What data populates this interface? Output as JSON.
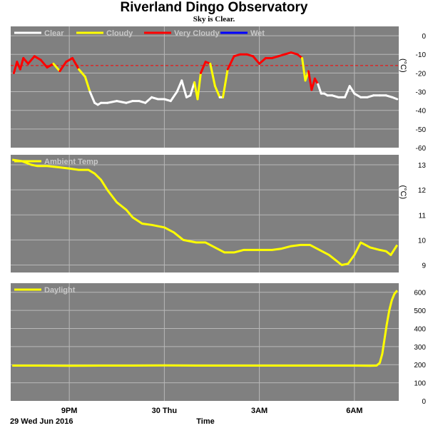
{
  "header": {
    "title": "Riverland Dingo Observatory",
    "subtitle": "Sky is Clear."
  },
  "colors": {
    "panel_bg": "#808080",
    "grid": "#b8b8b8",
    "clear": "#ffffff",
    "cloudy": "#ffff00",
    "very_cloudy": "#ff0000",
    "wet": "#0000ff",
    "threshold": "#ff0000",
    "legend_text": "#c8c8c8"
  },
  "x_axis": {
    "label": "Time",
    "date_label": "29 Wed Jun 2016",
    "ticks": [
      {
        "hour": 21,
        "label": "9PM"
      },
      {
        "hour": 24,
        "label": "30 Thu"
      },
      {
        "hour": 27,
        "label": "3AM"
      },
      {
        "hour": 30,
        "label": "6AM"
      }
    ],
    "xlim": [
      19.15,
      31.4
    ]
  },
  "chart_data": [
    {
      "type": "line",
      "panel": "sky",
      "legend": [
        "Clear",
        "Cloudy",
        "Very Cloudy",
        "Wet"
      ],
      "ylabel": "(°C)",
      "ylim": [
        -60,
        5
      ],
      "yticks": [
        0,
        -10,
        -20,
        -30,
        -40,
        -50,
        -60
      ],
      "threshold": -16,
      "x": [
        19.25,
        19.35,
        19.45,
        19.55,
        19.7,
        19.9,
        20.1,
        20.3,
        20.5,
        20.7,
        20.9,
        21.1,
        21.3,
        21.5,
        21.65,
        21.8,
        21.9,
        22.0,
        22.2,
        22.5,
        22.8,
        23.0,
        23.2,
        23.4,
        23.6,
        23.8,
        24.0,
        24.2,
        24.4,
        24.55,
        24.7,
        24.82,
        24.95,
        25.05,
        25.15,
        25.3,
        25.45,
        25.6,
        25.75,
        25.85,
        26.0,
        26.2,
        26.4,
        26.6,
        26.8,
        27.0,
        27.2,
        27.4,
        27.6,
        27.8,
        28.0,
        28.2,
        28.35,
        28.45,
        28.55,
        28.65,
        28.75,
        28.85,
        28.95,
        29.05,
        29.15,
        29.3,
        29.5,
        29.7,
        29.85,
        30.0,
        30.2,
        30.4,
        30.6,
        30.8,
        31.0,
        31.2,
        31.35
      ],
      "y": [
        -20,
        -14,
        -18,
        -12,
        -15,
        -11,
        -13,
        -17,
        -15,
        -19,
        -14,
        -12,
        -18,
        -22,
        -30,
        -36,
        -37,
        -36,
        -36,
        -35,
        -36,
        -35,
        -35,
        -36,
        -33,
        -34,
        -34,
        -35,
        -30,
        -24,
        -33,
        -32,
        -25,
        -34,
        -20,
        -14,
        -15,
        -27,
        -33,
        -33,
        -18,
        -11,
        -10,
        -10,
        -11,
        -15,
        -12,
        -12,
        -11,
        -10,
        -9,
        -10,
        -12,
        -24,
        -19,
        -29,
        -23,
        -26,
        -31,
        -31,
        -32,
        -32,
        -33,
        -33,
        -27,
        -31,
        -33,
        -33,
        -32,
        -32,
        -32,
        -33,
        -34
      ],
      "condition": [
        "cloudy",
        "very_cloudy",
        "very_cloudy",
        "very_cloudy",
        "very_cloudy",
        "very_cloudy",
        "very_cloudy",
        "very_cloudy",
        "very_cloudy",
        "cloudy",
        "very_cloudy",
        "very_cloudy",
        "very_cloudy",
        "cloudy",
        "cloudy",
        "clear",
        "clear",
        "clear",
        "clear",
        "clear",
        "clear",
        "clear",
        "clear",
        "clear",
        "clear",
        "clear",
        "clear",
        "clear",
        "clear",
        "clear",
        "clear",
        "clear",
        "clear",
        "cloudy",
        "cloudy",
        "very_cloudy",
        "very_cloudy",
        "cloudy",
        "cloudy",
        "clear",
        "cloudy",
        "very_cloudy",
        "very_cloudy",
        "very_cloudy",
        "very_cloudy",
        "very_cloudy",
        "very_cloudy",
        "very_cloudy",
        "very_cloudy",
        "very_cloudy",
        "very_cloudy",
        "very_cloudy",
        "very_cloudy",
        "cloudy",
        "cloudy",
        "very_cloudy",
        "very_cloudy",
        "very_cloudy",
        "clear",
        "clear",
        "clear",
        "clear",
        "clear",
        "clear",
        "clear",
        "clear",
        "clear",
        "clear",
        "clear",
        "clear",
        "clear",
        "clear",
        "clear"
      ]
    },
    {
      "type": "line",
      "panel": "temperature",
      "legend": [
        "Ambient Temp"
      ],
      "ylabel": "(°C)",
      "ylim": [
        8.7,
        13.4
      ],
      "yticks": [
        9,
        10,
        11,
        12,
        13
      ],
      "x": [
        19.2,
        19.5,
        19.8,
        20.0,
        20.3,
        20.7,
        21.0,
        21.3,
        21.6,
        21.8,
        22.0,
        22.2,
        22.5,
        22.8,
        23.0,
        23.3,
        23.6,
        24.0,
        24.3,
        24.6,
        24.8,
        25.0,
        25.3,
        25.6,
        25.9,
        26.2,
        26.5,
        26.8,
        27.1,
        27.4,
        27.7,
        28.0,
        28.3,
        28.6,
        28.9,
        29.2,
        29.4,
        29.6,
        29.8,
        30.0,
        30.2,
        30.5,
        30.8,
        31.0,
        31.15,
        31.35
      ],
      "y": [
        13.2,
        13.15,
        13.0,
        12.95,
        12.95,
        12.9,
        12.85,
        12.8,
        12.8,
        12.65,
        12.4,
        12.0,
        11.5,
        11.2,
        10.9,
        10.65,
        10.6,
        10.5,
        10.3,
        10.0,
        9.95,
        9.9,
        9.9,
        9.7,
        9.5,
        9.5,
        9.6,
        9.6,
        9.6,
        9.6,
        9.65,
        9.75,
        9.8,
        9.8,
        9.6,
        9.4,
        9.2,
        9.0,
        9.05,
        9.4,
        9.9,
        9.7,
        9.6,
        9.55,
        9.4,
        9.8
      ]
    },
    {
      "type": "line",
      "panel": "daylight",
      "legend": [
        "Daylight"
      ],
      "ylim": [
        0,
        650
      ],
      "yticks": [
        0,
        100,
        200,
        300,
        400,
        500,
        600
      ],
      "x": [
        19.2,
        20.0,
        21.0,
        22.0,
        23.0,
        24.0,
        25.0,
        26.0,
        27.0,
        28.0,
        29.0,
        30.0,
        30.5,
        30.7,
        30.8,
        30.88,
        30.95,
        31.02,
        31.1,
        31.18,
        31.26,
        31.35
      ],
      "y": [
        195,
        195,
        194,
        195,
        195,
        196,
        195,
        195,
        195,
        195,
        195,
        195,
        194,
        195,
        210,
        260,
        340,
        420,
        500,
        555,
        590,
        610
      ]
    }
  ]
}
